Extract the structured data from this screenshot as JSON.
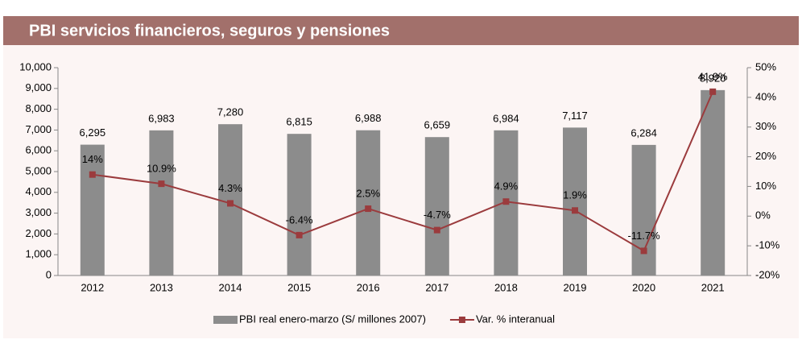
{
  "chart_data": {
    "type": "bar_line",
    "title": "PBI servicios financieros, seguros y pensiones",
    "categories": [
      "2012",
      "2013",
      "2014",
      "2015",
      "2016",
      "2017",
      "2018",
      "2019",
      "2020",
      "2021"
    ],
    "series": [
      {
        "name": "PBI real enero-marzo (S/ millones 2007)",
        "type": "bar",
        "color": "#8c8c8c",
        "values": [
          6295,
          6983,
          7280,
          6815,
          6988,
          6659,
          6984,
          7117,
          6284,
          8920
        ],
        "value_labels": [
          "6,295",
          "6,983",
          "7,280",
          "6,815",
          "6,988",
          "6,659",
          "6,984",
          "7,117",
          "6,284",
          "8,920"
        ]
      },
      {
        "name": "Var. % interanual",
        "type": "line",
        "axis": "y2",
        "color": "#9b3b3d",
        "values": [
          14,
          10.9,
          4.3,
          -6.4,
          2.5,
          -4.7,
          4.9,
          1.9,
          -11.7,
          41.9
        ],
        "value_labels": [
          "14%",
          "10.9%",
          "4.3%",
          "-6.4%",
          "2.5%",
          "-4.7%",
          "4.9%",
          "1.9%",
          "-11.7%",
          "41.9%"
        ]
      }
    ],
    "ylim": [
      0,
      10000
    ],
    "yticks": [
      0,
      {
        "value": 1000,
        "label": "1,000"
      },
      {
        "value": 2000,
        "label": "2,000"
      },
      {
        "value": 3000,
        "label": "3,000"
      },
      {
        "value": 4000,
        "label": "4,000"
      },
      {
        "value": 5000,
        "label": "5,000"
      },
      {
        "value": 6000,
        "label": "6,000"
      },
      {
        "value": 7000,
        "label": "7,000"
      },
      {
        "value": 8000,
        "label": "8,000"
      },
      {
        "value": 9000,
        "label": "9,000"
      },
      {
        "value": 10000,
        "label": "10,000"
      }
    ],
    "y2lim": [
      -20,
      50
    ],
    "y2ticks": [
      {
        "value": -20,
        "label": "-20%"
      },
      {
        "value": -10,
        "label": "-10%"
      },
      {
        "value": 0,
        "label": "0%"
      },
      {
        "value": 10,
        "label": "10%"
      },
      {
        "value": 20,
        "label": "20%"
      },
      {
        "value": 30,
        "label": "30%"
      },
      {
        "value": 40,
        "label": "40%"
      },
      {
        "value": 50,
        "label": "50%"
      }
    ],
    "legend": "bottom"
  }
}
